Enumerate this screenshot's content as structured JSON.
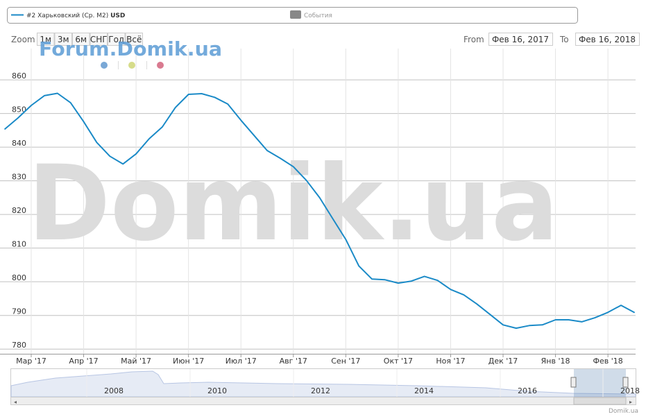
{
  "chart_data": {
    "type": "line",
    "categories": [
      null,
      null,
      "Мар '17",
      null,
      null,
      null,
      "Апр '17",
      null,
      null,
      null,
      "Май '17",
      null,
      null,
      null,
      "Июн '17",
      null,
      null,
      null,
      "Июл '17",
      null,
      null,
      null,
      "Авг '17",
      null,
      null,
      null,
      "Сен '17",
      null,
      null,
      null,
      "Окт '17",
      null,
      null,
      null,
      "Ноя '17",
      null,
      null,
      null,
      "Дек '17",
      null,
      null,
      null,
      "Янв '18",
      null,
      null,
      null,
      "Фев '18",
      null,
      null
    ],
    "series": [
      {
        "name": "#2 Харьковский (Ср. М2)",
        "color": "#1a8ac7",
        "values": [
          845.4,
          848.7,
          852.4,
          855.3,
          856.0,
          853.2,
          847.6,
          841.4,
          837.3,
          835.0,
          838.0,
          842.5,
          846.0,
          851.8,
          855.7,
          855.9,
          854.8,
          852.8,
          848.0,
          843.5,
          839.0,
          836.7,
          834.2,
          830.1,
          825.0,
          818.8,
          812.6,
          804.7,
          800.8,
          800.6,
          799.6,
          800.2,
          801.6,
          800.4,
          797.7,
          796.1,
          793.4,
          790.3,
          787.2,
          786.2,
          787.0,
          787.2,
          788.7,
          788.7,
          788.1,
          789.3,
          790.9,
          793.0,
          790.9
        ]
      }
    ],
    "ylim": [
      778.6,
      869.3
    ],
    "yticks": [
      780,
      790,
      800,
      810,
      820,
      830,
      840,
      850,
      860
    ],
    "grid": true
  },
  "ui": {
    "legend_unit": "USD",
    "events": "События",
    "zoom_label": "Zoom",
    "zoom_buttons": [
      "1м",
      "3м",
      "6м",
      "СНГ",
      "Год",
      "Всё"
    ],
    "from_label": "From",
    "from_date": "Фев 16, 2017",
    "to_label": "To",
    "to_date": "Фев 16, 2018",
    "watermark_small": "Forum.Domik.ua",
    "watermark_big": "Domik.ua",
    "navigator_labels": [
      "2008",
      "2010",
      "2012",
      "2014",
      "2016",
      "2018"
    ],
    "credit": "Domik.ua"
  }
}
